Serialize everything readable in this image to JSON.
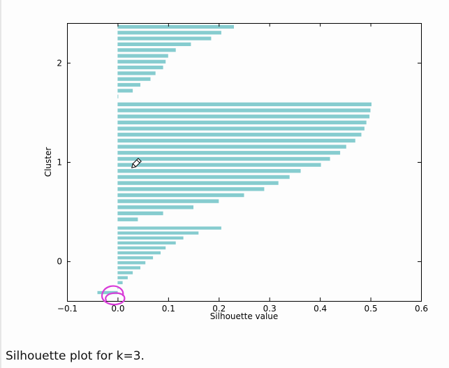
{
  "caption": "Silhouette plot for k=3.",
  "annotation_color": "#d83ad8",
  "bar_color": "#86cccf",
  "chart_data": {
    "type": "bar",
    "orientation": "horizontal",
    "xlabel": "Silhouette value",
    "ylabel": "Cluster",
    "xlim": [
      -0.1,
      0.6
    ],
    "xticks": [
      -0.1,
      0.0,
      0.1,
      0.2,
      0.3,
      0.4,
      0.5,
      0.6
    ],
    "xtick_labels": [
      "−0.1",
      "0.0",
      "0.1",
      "0.2",
      "0.3",
      "0.4",
      "0.5",
      "0.6"
    ],
    "yticks": [
      0,
      1,
      2
    ],
    "ytick_labels": [
      "0",
      "1",
      "2"
    ],
    "ylim": [
      -0.4,
      2.4
    ],
    "grid": false,
    "clusters": [
      {
        "cluster": 0,
        "silhouette_values": [
          0.205,
          0.16,
          0.13,
          0.115,
          0.095,
          0.085,
          0.07,
          0.055,
          0.045,
          0.03,
          0.02,
          0.01,
          0.0,
          -0.04
        ]
      },
      {
        "cluster": 1,
        "silhouette_values": [
          0.502,
          0.5,
          0.498,
          0.492,
          0.488,
          0.482,
          0.47,
          0.452,
          0.44,
          0.42,
          0.402,
          0.362,
          0.34,
          0.318,
          0.29,
          0.25,
          0.2,
          0.15,
          0.09,
          0.04
        ]
      },
      {
        "cluster": 2,
        "silhouette_values": [
          0.23,
          0.205,
          0.185,
          0.145,
          0.115,
          0.1,
          0.095,
          0.09,
          0.075,
          0.065,
          0.045,
          0.03,
          0.0
        ]
      }
    ]
  }
}
